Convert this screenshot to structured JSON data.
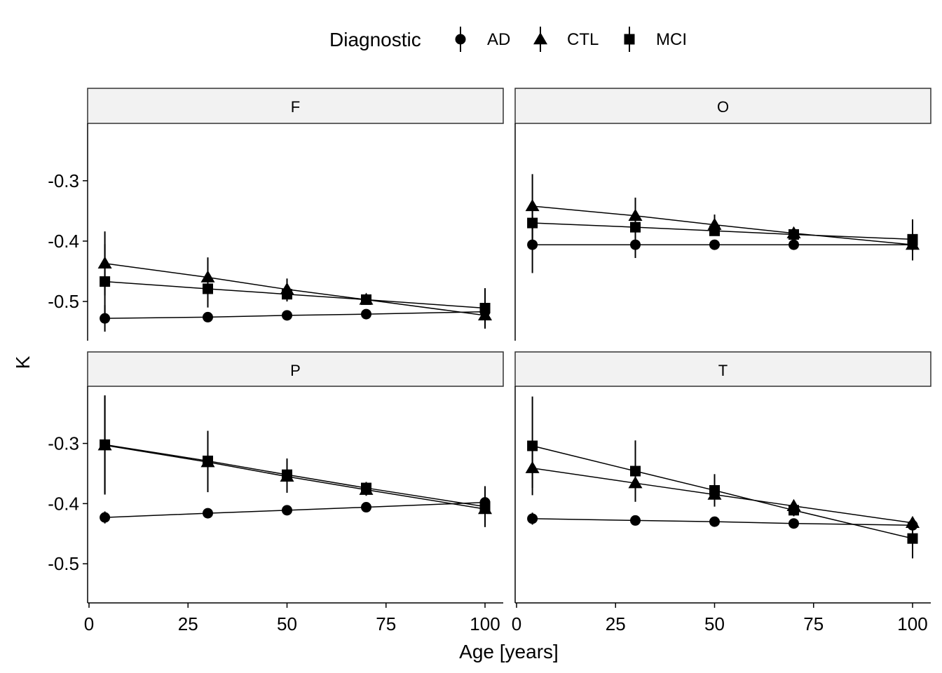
{
  "chart_data": {
    "type": "line",
    "xlabel": "Age [years]",
    "ylabel": "K",
    "legend": {
      "title": "Diagnostic",
      "position": "top",
      "entries": [
        {
          "name": "AD",
          "shape": "circle"
        },
        {
          "name": "CTL",
          "shape": "triangle"
        },
        {
          "name": "MCI",
          "shape": "square"
        }
      ]
    },
    "xlim": [
      0,
      100
    ],
    "ylim": [
      -0.565,
      -0.205
    ],
    "x_ticks": [
      0,
      25,
      50,
      75,
      100
    ],
    "x_tick_labels": [
      "0",
      "25",
      "50",
      "75",
      "100"
    ],
    "y_ticks": [
      -0.3,
      -0.4,
      -0.5
    ],
    "y_tick_labels": [
      "-0.3",
      "-0.4",
      "-0.5"
    ],
    "grid": false,
    "facets": [
      {
        "label": "F",
        "series": [
          {
            "name": "AD",
            "points": [
              {
                "x": 4,
                "y": -0.528,
                "err": 0.022
              },
              {
                "x": 30,
                "y": -0.526
              },
              {
                "x": 50,
                "y": -0.523
              },
              {
                "x": 70,
                "y": -0.521
              },
              {
                "x": 100,
                "y": -0.517
              }
            ]
          },
          {
            "name": "CTL",
            "points": [
              {
                "x": 4,
                "y": -0.437,
                "err": 0.053
              },
              {
                "x": 30,
                "y": -0.46,
                "err": 0.033
              },
              {
                "x": 50,
                "y": -0.48,
                "err": 0.018
              },
              {
                "x": 70,
                "y": -0.497
              },
              {
                "x": 100,
                "y": -0.523,
                "err": 0.022
              }
            ]
          },
          {
            "name": "MCI",
            "points": [
              {
                "x": 4,
                "y": -0.467,
                "err": 0.062
              },
              {
                "x": 30,
                "y": -0.479,
                "err": 0.031
              },
              {
                "x": 50,
                "y": -0.488,
                "err": 0.012
              },
              {
                "x": 70,
                "y": -0.497
              },
              {
                "x": 100,
                "y": -0.511,
                "err": 0.033
              }
            ]
          }
        ]
      },
      {
        "label": "O",
        "series": [
          {
            "name": "AD",
            "points": [
              {
                "x": 4,
                "y": -0.406,
                "err": 0.047
              },
              {
                "x": 30,
                "y": -0.406,
                "err": 0.022
              },
              {
                "x": 50,
                "y": -0.406
              },
              {
                "x": 70,
                "y": -0.406
              },
              {
                "x": 100,
                "y": -0.406
              }
            ]
          },
          {
            "name": "CTL",
            "points": [
              {
                "x": 4,
                "y": -0.342,
                "err": 0.053
              },
              {
                "x": 30,
                "y": -0.358,
                "err": 0.03
              },
              {
                "x": 50,
                "y": -0.373,
                "err": 0.017
              },
              {
                "x": 70,
                "y": -0.387,
                "err": 0.01
              },
              {
                "x": 100,
                "y": -0.406,
                "err": 0.026
              }
            ]
          },
          {
            "name": "MCI",
            "points": [
              {
                "x": 4,
                "y": -0.37,
                "err": 0.032
              },
              {
                "x": 30,
                "y": -0.377
              },
              {
                "x": 50,
                "y": -0.383
              },
              {
                "x": 70,
                "y": -0.389
              },
              {
                "x": 100,
                "y": -0.397,
                "err": 0.033
              }
            ]
          }
        ]
      },
      {
        "label": "P",
        "series": [
          {
            "name": "AD",
            "points": [
              {
                "x": 4,
                "y": -0.423,
                "err": 0.01
              },
              {
                "x": 30,
                "y": -0.416
              },
              {
                "x": 50,
                "y": -0.411
              },
              {
                "x": 70,
                "y": -0.406
              },
              {
                "x": 100,
                "y": -0.398,
                "err": 0.027
              }
            ]
          },
          {
            "name": "CTL",
            "points": [
              {
                "x": 4,
                "y": -0.303,
                "err": 0.082
              },
              {
                "x": 30,
                "y": -0.331,
                "err": 0.05
              },
              {
                "x": 50,
                "y": -0.355,
                "err": 0.027
              },
              {
                "x": 70,
                "y": -0.377,
                "err": 0.01
              },
              {
                "x": 100,
                "y": -0.409,
                "err": 0.03
              }
            ]
          },
          {
            "name": "MCI",
            "points": [
              {
                "x": 4,
                "y": -0.302,
                "err": 0.082
              },
              {
                "x": 30,
                "y": -0.329,
                "err": 0.05
              },
              {
                "x": 50,
                "y": -0.352,
                "err": 0.027
              },
              {
                "x": 70,
                "y": -0.374,
                "err": 0.01
              },
              {
                "x": 100,
                "y": -0.405,
                "err": 0.03
              }
            ]
          }
        ]
      },
      {
        "label": "T",
        "series": [
          {
            "name": "AD",
            "points": [
              {
                "x": 4,
                "y": -0.425,
                "err": 0.01
              },
              {
                "x": 30,
                "y": -0.428
              },
              {
                "x": 50,
                "y": -0.43
              },
              {
                "x": 70,
                "y": -0.433
              },
              {
                "x": 100,
                "y": -0.436
              }
            ]
          },
          {
            "name": "CTL",
            "points": [
              {
                "x": 4,
                "y": -0.341,
                "err": 0.033
              },
              {
                "x": 30,
                "y": -0.366,
                "err": 0.03
              },
              {
                "x": 50,
                "y": -0.385,
                "err": 0.018
              },
              {
                "x": 70,
                "y": -0.404
              },
              {
                "x": 100,
                "y": -0.432
              }
            ]
          },
          {
            "name": "MCI",
            "points": [
              {
                "x": 4,
                "y": -0.304,
                "err": 0.082
              },
              {
                "x": 30,
                "y": -0.346,
                "err": 0.051
              },
              {
                "x": 50,
                "y": -0.378,
                "err": 0.027
              },
              {
                "x": 70,
                "y": -0.411,
                "err": 0.01
              },
              {
                "x": 100,
                "y": -0.458,
                "err": 0.033
              }
            ]
          }
        ]
      }
    ]
  }
}
